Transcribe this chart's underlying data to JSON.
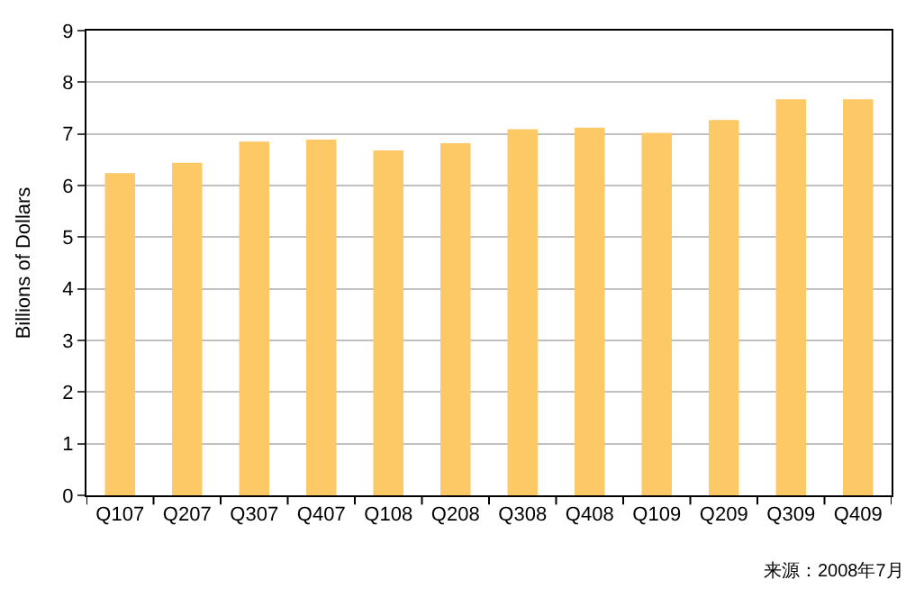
{
  "chart_data": {
    "type": "bar",
    "ylabel": "Billions of Dollars",
    "categories": [
      "Q107",
      "Q207",
      "Q307",
      "Q407",
      "Q108",
      "Q208",
      "Q308",
      "Q408",
      "Q109",
      "Q209",
      "Q309",
      "Q409"
    ],
    "values": [
      6.24,
      6.44,
      6.85,
      6.89,
      6.68,
      6.82,
      7.09,
      7.12,
      7.02,
      7.27,
      7.67,
      7.67
    ],
    "color": "#fdc966",
    "ylim": [
      0,
      9
    ],
    "yticks": [
      0,
      1,
      2,
      3,
      4,
      5,
      6,
      7,
      8,
      9
    ],
    "grid": "y",
    "annotations": [
      "来源：2008年7月"
    ]
  }
}
